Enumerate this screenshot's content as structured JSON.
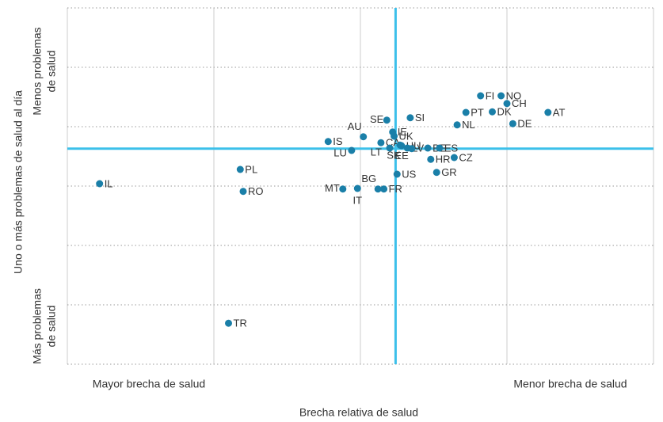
{
  "chart_data": {
    "type": "scatter",
    "xlabel": "Brecha relativa de salud",
    "ylabel": "Uno o más problemas de salud  al día",
    "x_low_label": "Mayor brecha de salud",
    "x_high_label": "Menor brecha de salud",
    "y_high_label": [
      "Menos problemas",
      "de salud"
    ],
    "y_low_label": [
      "Más problemas",
      "de salud"
    ],
    "xlim": [
      0,
      4
    ],
    "ylim": [
      0,
      6
    ],
    "xticks": [
      0,
      1,
      2,
      3,
      4
    ],
    "yticks": [
      0,
      1,
      2,
      3,
      4,
      5,
      6
    ],
    "grid": true,
    "color": "#1a7fa8",
    "reference_color": "#3cc0ea",
    "reference_x": 2.24,
    "reference_y": 3.63,
    "labels": [
      "IL",
      "PL",
      "RO",
      "TR",
      "IS",
      "LU",
      "AU",
      "CA",
      "MT",
      "IT",
      "BG",
      "FR",
      "SE",
      "IE",
      "UK",
      "SI",
      "HU",
      "LT",
      "SK",
      "LV",
      "BE",
      "EE",
      "ES",
      "HR",
      "CZ",
      "US",
      "GR",
      "NL",
      "PT",
      "FI",
      "NO",
      "CH",
      "DK",
      "DE",
      "AT"
    ],
    "x": [
      0.22,
      1.18,
      1.2,
      1.1,
      1.78,
      1.94,
      2.02,
      2.14,
      1.88,
      1.98,
      2.12,
      2.16,
      2.18,
      2.22,
      2.23,
      2.34,
      2.28,
      2.2,
      2.27,
      2.32,
      2.46,
      2.35,
      2.54,
      2.48,
      2.64,
      2.25,
      2.52,
      2.66,
      2.72,
      2.82,
      2.96,
      3.0,
      2.9,
      3.04,
      3.28
    ],
    "y": [
      3.04,
      3.28,
      2.91,
      0.69,
      3.75,
      3.6,
      3.83,
      3.73,
      2.95,
      2.96,
      2.95,
      2.95,
      4.11,
      3.91,
      3.84,
      4.15,
      3.68,
      3.64,
      3.69,
      3.64,
      3.64,
      3.63,
      3.64,
      3.45,
      3.48,
      3.2,
      3.23,
      4.03,
      4.24,
      4.52,
      4.52,
      4.39,
      4.25,
      4.05,
      4.24
    ]
  }
}
